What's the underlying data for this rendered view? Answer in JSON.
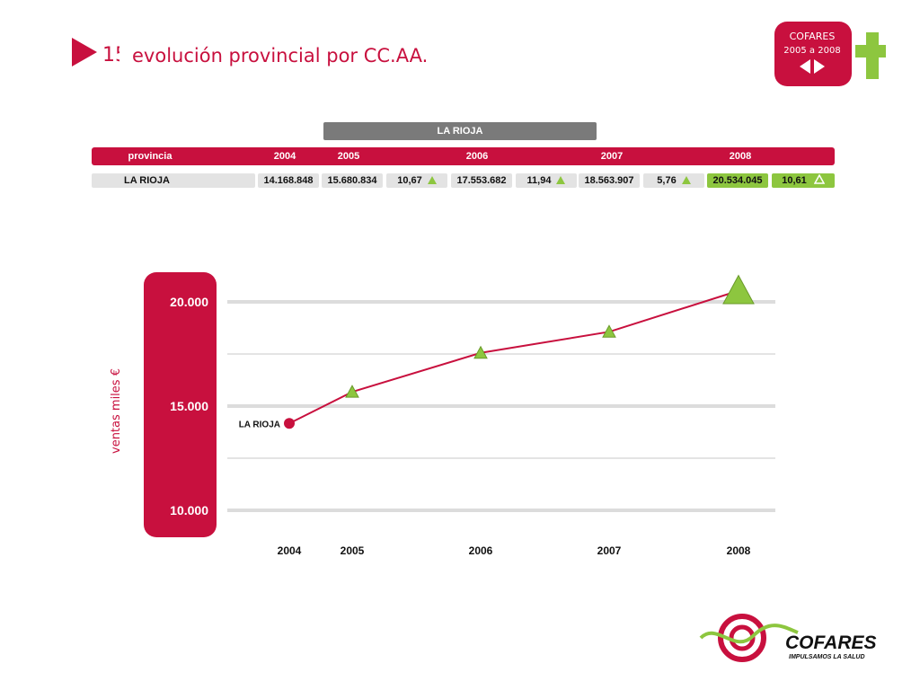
{
  "header": {
    "page_number": "15",
    "title": "evolución provincial por CC.AA.",
    "badge_line1": "COFARES",
    "badge_line2": "2005 a 2008"
  },
  "table": {
    "region_title": "LA RIOJA",
    "columns": [
      "provincia",
      "2004",
      "2005",
      "2006",
      "2007",
      "2008"
    ],
    "row": {
      "provincia": "LA RIOJA",
      "v2004": "14.168.848",
      "v2005": "15.680.834",
      "g2005": "10,67",
      "v2006": "17.553.682",
      "g2006": "11,94",
      "v2007": "18.563.907",
      "g2007": "5,76",
      "v2008": "20.534.045",
      "g2008": "10,61"
    }
  },
  "chart_data": {
    "type": "line",
    "title": "",
    "xlabel": "",
    "ylabel": "ventas miles €",
    "categories": [
      "2004",
      "2005",
      "2006",
      "2007",
      "2008"
    ],
    "series": [
      {
        "name": "LA RIOJA",
        "values": [
          14168.848,
          15680.834,
          17553.682,
          18563.907,
          20534.045
        ]
      }
    ],
    "yticks": [
      10000,
      15000,
      20000
    ],
    "ytick_labels": [
      "10.000",
      "15.000",
      "20.000"
    ],
    "ylim": [
      10000,
      20000
    ],
    "grid": true,
    "line_color": "#c8103e",
    "marker_color": "#8dc63f"
  },
  "footer": {
    "brand": "COFARES",
    "tagline": "IMPULSAMOS LA SALUD"
  },
  "colors": {
    "accent": "#c8103e",
    "green": "#8dc63f",
    "gray": "#7a7a7a"
  }
}
